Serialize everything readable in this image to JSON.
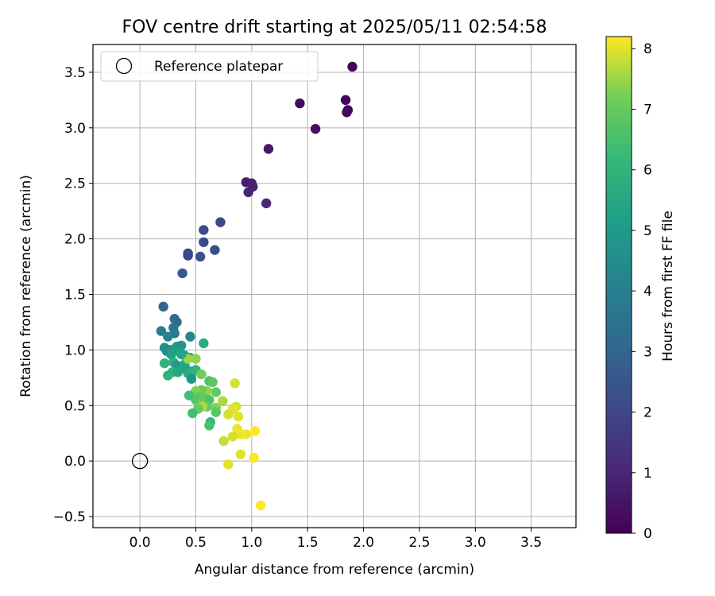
{
  "chart_data": {
    "type": "scatter",
    "title": "FOV centre drift starting at 2025/05/11 02:54:58",
    "xlabel": "Angular distance from reference (arcmin)",
    "ylabel": "Rotation from reference (arcmin)",
    "xlim": [
      -0.42,
      3.9
    ],
    "ylim": [
      -0.6,
      3.75
    ],
    "xticks": [
      "0.0",
      "0.5",
      "1.0",
      "1.5",
      "2.0",
      "2.5",
      "3.0",
      "3.5"
    ],
    "yticks": [
      "−0.5",
      "0.0",
      "0.5",
      "1.0",
      "1.5",
      "2.0",
      "2.5",
      "3.0",
      "3.5"
    ],
    "grid": true,
    "legend": {
      "location": "top-left",
      "entries": [
        "Reference platepar"
      ]
    },
    "reference_point": {
      "x": 0.0,
      "y": 0.0,
      "marker": "hollow-circle",
      "label": "Reference platepar"
    },
    "colorbar": {
      "label": "Hours from first FF file",
      "colormap": "viridis",
      "range": [
        0,
        8.2
      ],
      "ticks": [
        "0",
        "1",
        "2",
        "3",
        "4",
        "5",
        "6",
        "7",
        "8"
      ]
    },
    "points": [
      [
        1.9,
        3.55,
        0.05
      ],
      [
        1.84,
        3.25,
        0.1
      ],
      [
        1.86,
        3.16,
        0.15
      ],
      [
        1.85,
        3.14,
        0.2
      ],
      [
        1.43,
        3.22,
        0.25
      ],
      [
        1.57,
        2.99,
        0.35
      ],
      [
        1.15,
        2.81,
        0.6
      ],
      [
        0.95,
        2.51,
        0.8
      ],
      [
        1.0,
        2.5,
        0.85
      ],
      [
        1.01,
        2.47,
        0.9
      ],
      [
        0.97,
        2.42,
        0.95
      ],
      [
        1.13,
        2.32,
        1.0
      ],
      [
        0.72,
        2.15,
        2.0
      ],
      [
        0.57,
        2.08,
        2.1
      ],
      [
        0.57,
        1.97,
        2.15
      ],
      [
        0.67,
        1.9,
        2.2
      ],
      [
        0.43,
        1.87,
        1.9
      ],
      [
        0.43,
        1.85,
        2.0
      ],
      [
        0.54,
        1.84,
        2.3
      ],
      [
        0.38,
        1.69,
        2.6
      ],
      [
        0.21,
        1.39,
        3.0
      ],
      [
        0.31,
        1.28,
        3.1
      ],
      [
        0.33,
        1.25,
        3.2
      ],
      [
        0.19,
        1.17,
        3.9
      ],
      [
        0.3,
        1.2,
        3.5
      ],
      [
        0.31,
        1.15,
        3.8
      ],
      [
        0.25,
        1.12,
        4.1
      ],
      [
        0.45,
        1.12,
        4.3
      ],
      [
        0.57,
        1.06,
        5.6
      ],
      [
        0.22,
        1.02,
        4.5
      ],
      [
        0.27,
        1.0,
        4.4
      ],
      [
        0.24,
        0.99,
        4.6
      ],
      [
        0.33,
        1.03,
        4.7
      ],
      [
        0.37,
        1.04,
        4.8
      ],
      [
        0.3,
        1.0,
        5.0
      ],
      [
        0.28,
        0.96,
        5.2
      ],
      [
        0.36,
        0.98,
        5.1
      ],
      [
        0.4,
        0.95,
        5.3
      ],
      [
        0.45,
        0.93,
        5.4
      ],
      [
        0.5,
        0.92,
        7.4
      ],
      [
        0.22,
        0.88,
        6.0
      ],
      [
        0.3,
        0.89,
        5.8
      ],
      [
        0.33,
        0.86,
        4.9
      ],
      [
        0.37,
        0.84,
        5.0
      ],
      [
        0.4,
        0.87,
        5.5
      ],
      [
        0.42,
        0.82,
        5.3
      ],
      [
        0.48,
        0.81,
        5.6
      ],
      [
        0.43,
        0.79,
        5.7
      ],
      [
        0.25,
        0.77,
        5.9
      ],
      [
        0.29,
        0.8,
        5.9
      ],
      [
        0.34,
        0.8,
        5.5
      ],
      [
        0.46,
        0.74,
        4.8
      ],
      [
        0.5,
        0.82,
        6.1
      ],
      [
        0.55,
        0.78,
        7.2
      ],
      [
        0.62,
        0.72,
        6.5
      ],
      [
        0.65,
        0.71,
        6.8
      ],
      [
        0.68,
        0.62,
        7.0
      ],
      [
        0.6,
        0.63,
        7.4
      ],
      [
        0.55,
        0.64,
        7.1
      ],
      [
        0.5,
        0.63,
        7.3
      ],
      [
        0.44,
        0.59,
        6.4
      ],
      [
        0.52,
        0.58,
        6.9
      ],
      [
        0.58,
        0.56,
        7.0
      ],
      [
        0.62,
        0.55,
        6.6
      ],
      [
        0.5,
        0.55,
        6.7
      ],
      [
        0.55,
        0.51,
        7.2
      ],
      [
        0.6,
        0.49,
        6.9
      ],
      [
        0.56,
        0.49,
        7.6
      ],
      [
        0.52,
        0.47,
        7.0
      ],
      [
        0.68,
        0.48,
        7.3
      ],
      [
        0.68,
        0.44,
        6.8
      ],
      [
        0.47,
        0.43,
        6.4
      ],
      [
        0.74,
        0.54,
        7.6
      ],
      [
        0.85,
        0.7,
        7.9
      ],
      [
        0.86,
        0.49,
        7.9
      ],
      [
        0.83,
        0.47,
        8.0
      ],
      [
        0.79,
        0.42,
        7.9
      ],
      [
        0.88,
        0.4,
        8.0
      ],
      [
        0.63,
        0.35,
        6.0
      ],
      [
        0.62,
        0.32,
        6.5
      ],
      [
        0.87,
        0.29,
        8.1
      ],
      [
        0.9,
        0.24,
        8.1
      ],
      [
        0.95,
        0.24,
        8.1
      ],
      [
        1.03,
        0.27,
        8.2
      ],
      [
        0.83,
        0.22,
        7.9
      ],
      [
        0.75,
        0.18,
        7.8
      ],
      [
        0.9,
        0.06,
        8.0
      ],
      [
        1.02,
        0.03,
        8.2
      ],
      [
        0.79,
        -0.03,
        8.0
      ],
      [
        1.08,
        -0.4,
        8.2
      ],
      [
        0.43,
        0.92,
        7.5
      ],
      [
        0.37,
        0.96,
        5.4
      ]
    ]
  }
}
